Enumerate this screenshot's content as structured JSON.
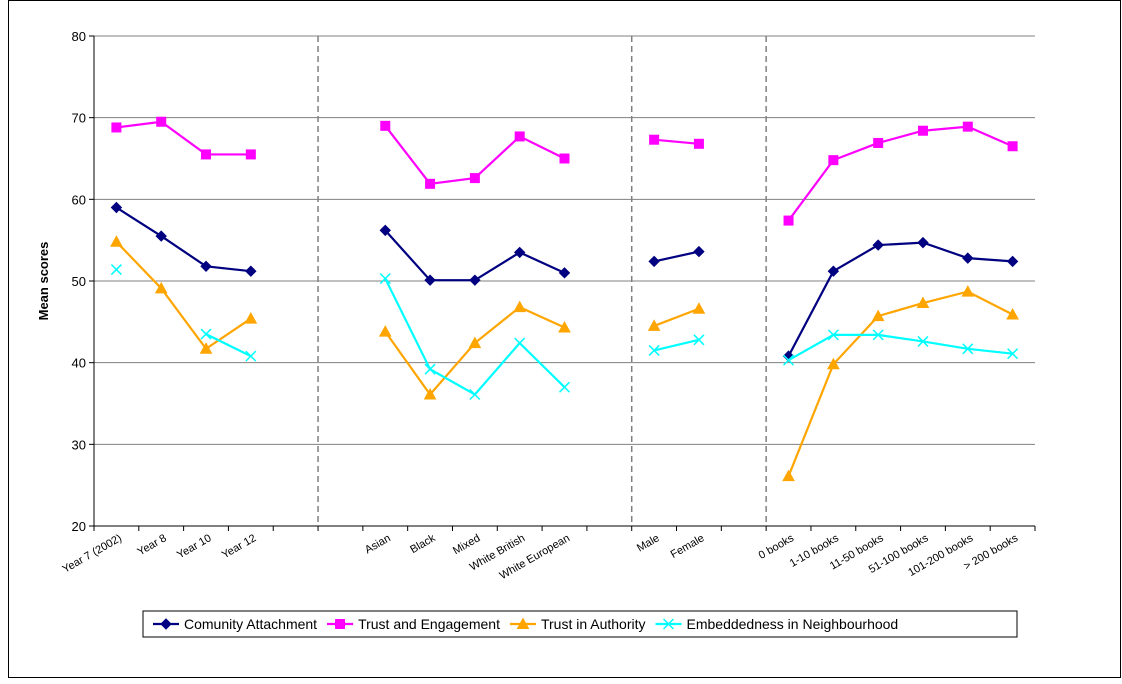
{
  "chart_data": {
    "type": "line",
    "title": "",
    "xlabel": "",
    "ylabel": "Mean scores",
    "ylim": [
      20,
      80
    ],
    "yticks": [
      20,
      30,
      40,
      50,
      60,
      70,
      80
    ],
    "grid": true,
    "legend_position": "bottom",
    "categories": [
      "Year 7 (2002)",
      "Year 8",
      "Year 10",
      "Year 12",
      "",
      "",
      "Asian",
      "Black",
      "Mixed",
      "White British",
      "White European",
      "",
      "Male",
      "Female",
      "",
      "0 books",
      "1-10 books",
      "11-50 books",
      "51-100 books",
      "101-200 books",
      "> 200 books"
    ],
    "separators_after": [
      4,
      11,
      14
    ],
    "series": [
      {
        "name": "Comunity Attachment",
        "color": "#000080",
        "marker": "diamond",
        "values": [
          59.0,
          55.5,
          51.8,
          51.2,
          null,
          null,
          56.2,
          50.1,
          50.1,
          53.5,
          51.0,
          null,
          52.4,
          53.6,
          null,
          40.8,
          51.2,
          54.4,
          54.7,
          52.8,
          52.4
        ]
      },
      {
        "name": "Trust and Engagement",
        "color": "#FF00FF",
        "marker": "square",
        "values": [
          68.8,
          69.5,
          65.5,
          65.5,
          null,
          null,
          69.0,
          61.9,
          62.6,
          67.7,
          65.0,
          null,
          67.3,
          66.8,
          null,
          57.4,
          64.8,
          66.9,
          68.4,
          68.9,
          66.5
        ]
      },
      {
        "name": "Trust in Authority",
        "color": "#FFA500",
        "marker": "triangle",
        "values": [
          54.8,
          49.1,
          41.7,
          45.4,
          null,
          null,
          43.8,
          36.1,
          42.4,
          46.8,
          44.3,
          null,
          44.5,
          46.6,
          null,
          26.1,
          39.8,
          45.7,
          47.3,
          48.7,
          45.9
        ]
      },
      {
        "name": "Embeddedness in Neighbourhood",
        "color": "#00FFFF",
        "marker": "x",
        "values": [
          51.4,
          null,
          43.5,
          40.8,
          null,
          null,
          50.3,
          39.2,
          36.1,
          42.4,
          37.0,
          null,
          41.5,
          42.8,
          null,
          40.3,
          43.4,
          43.4,
          42.6,
          41.7,
          41.1
        ]
      }
    ]
  }
}
